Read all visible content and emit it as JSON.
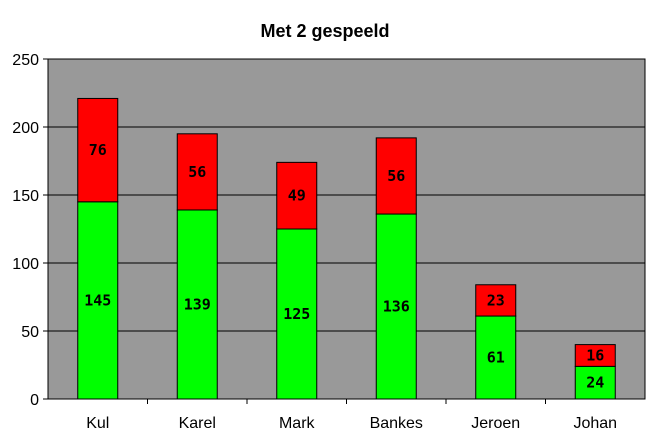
{
  "chart_data": {
    "type": "bar",
    "stacked": true,
    "title": "Met 2 gespeeld",
    "xlabel": "",
    "ylabel": "",
    "categories": [
      "Kul",
      "Karel",
      "Mark",
      "Bankes",
      "Jeroen",
      "Johan"
    ],
    "series": [
      {
        "color": "#00ff00",
        "values": [
          145,
          139,
          125,
          136,
          61,
          24
        ]
      },
      {
        "color": "#ff0000",
        "values": [
          76,
          56,
          49,
          56,
          23,
          16
        ]
      }
    ],
    "ylim": [
      0,
      250
    ],
    "yticks": [
      "0",
      "50",
      "100",
      "150",
      "200",
      "250"
    ],
    "grid": true,
    "plot_background": "#999999",
    "legend": "none"
  }
}
